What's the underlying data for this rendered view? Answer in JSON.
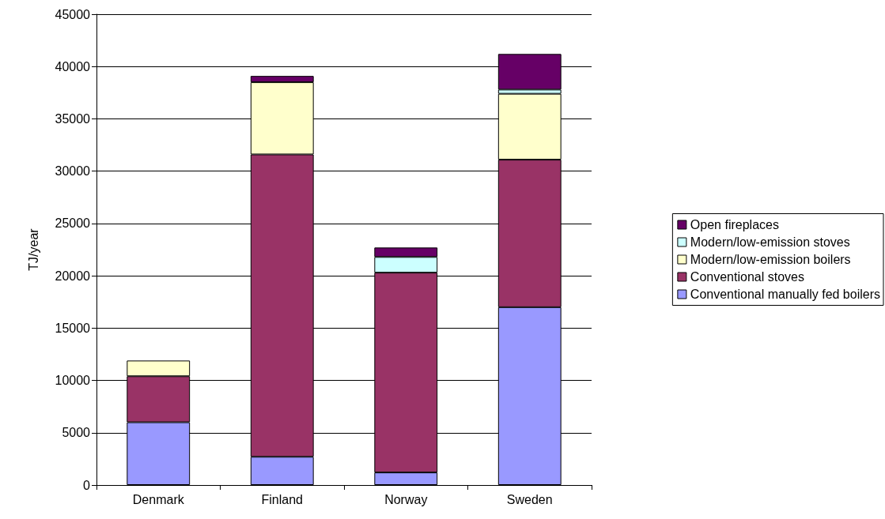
{
  "chart_data": {
    "type": "bar",
    "stacked": true,
    "ylabel": "TJ/year",
    "categories": [
      "Denmark",
      "Finland",
      "Norway",
      "Sweden"
    ],
    "series": [
      {
        "name": "Conventional manually fed boilers",
        "color": "#9999ff",
        "values": [
          6000,
          2700,
          1200,
          17000
        ]
      },
      {
        "name": "Conventional stoves",
        "color": "#993366",
        "values": [
          4400,
          28900,
          19100,
          14100
        ]
      },
      {
        "name": "Modern/low-emission boilers",
        "color": "#ffffcc",
        "values": [
          1500,
          6900,
          0,
          6300
        ]
      },
      {
        "name": "Modern/low-emission stoves",
        "color": "#ccffff",
        "values": [
          0,
          0,
          1500,
          400
        ]
      },
      {
        "name": "Open fireplaces",
        "color": "#660066",
        "values": [
          0,
          600,
          900,
          3400
        ]
      }
    ],
    "ylim": [
      0,
      45000
    ],
    "yticks": [
      0,
      5000,
      10000,
      15000,
      20000,
      25000,
      30000,
      35000,
      40000,
      45000
    ],
    "grid": "y",
    "legend": "right"
  }
}
